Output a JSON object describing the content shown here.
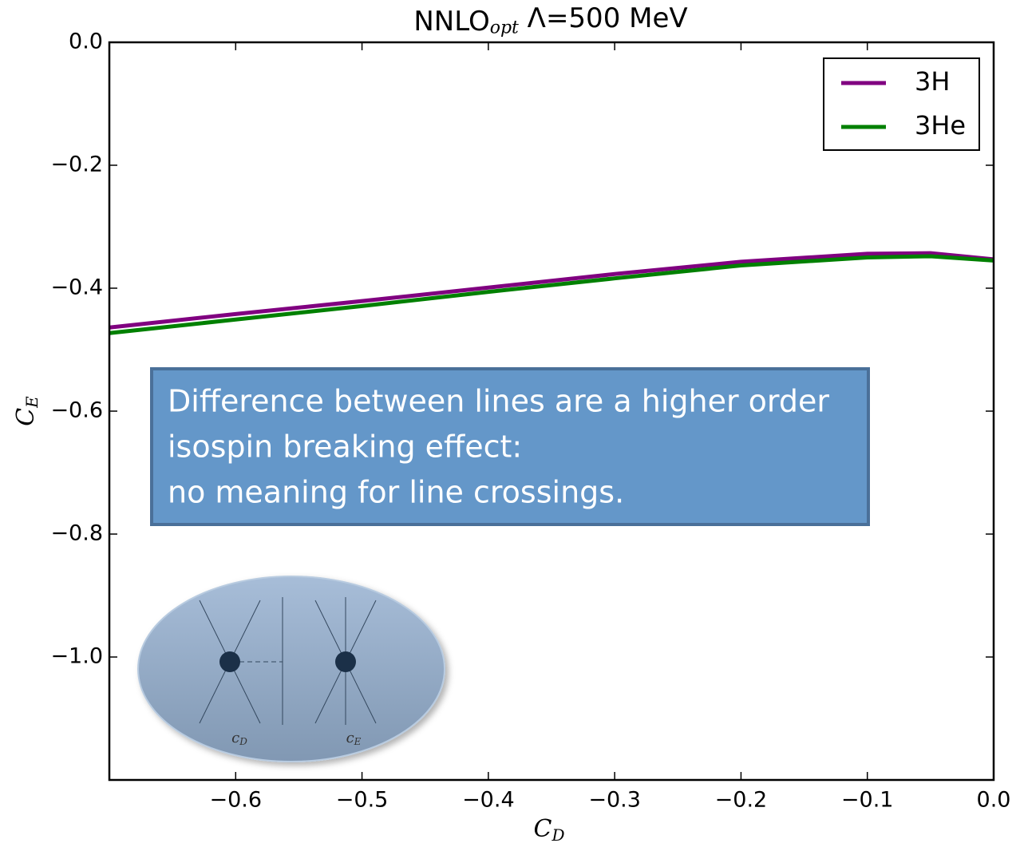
{
  "chart_data": {
    "type": "line",
    "title": {
      "text": "NNLO",
      "subscript": "opt",
      "suffix": " Λ=500 MeV"
    },
    "x_label": {
      "text": "C",
      "subscript": "D"
    },
    "y_label": {
      "text": "C",
      "subscript": "E"
    },
    "x": [
      -0.7,
      -0.6,
      -0.5,
      -0.4,
      -0.3,
      -0.2,
      -0.1,
      -0.05,
      0
    ],
    "series": [
      {
        "name": "3H",
        "color": "#800080",
        "values": [
          -0.464,
          -0.442,
          -0.421,
          -0.399,
          -0.377,
          -0.357,
          -0.344,
          -0.343,
          -0.353
        ]
      },
      {
        "name": "3He",
        "color": "#008000",
        "values": [
          -0.473,
          -0.451,
          -0.429,
          -0.406,
          -0.384,
          -0.363,
          -0.35,
          -0.348,
          -0.355
        ]
      }
    ],
    "xlim": [
      -0.7,
      0
    ],
    "ylim": [
      -1.2,
      0
    ],
    "xticks": [
      {
        "value": -0.6,
        "label": "−0.6"
      },
      {
        "value": -0.5,
        "label": "−0.5"
      },
      {
        "value": -0.4,
        "label": "−0.4"
      },
      {
        "value": -0.3,
        "label": "−0.3"
      },
      {
        "value": -0.2,
        "label": "−0.2"
      },
      {
        "value": -0.1,
        "label": "−0.1"
      },
      {
        "value": 0,
        "label": "0.0"
      }
    ],
    "yticks": [
      {
        "value": -1.0,
        "label": "−1.0"
      },
      {
        "value": -0.8,
        "label": "−0.8"
      },
      {
        "value": -0.6,
        "label": "−0.6"
      },
      {
        "value": -0.4,
        "label": "−0.4"
      },
      {
        "value": -0.2,
        "label": "−0.2"
      },
      {
        "value": 0,
        "label": "0.0"
      }
    ],
    "grid": false,
    "legend": "upper right",
    "annotation": [
      "Difference between lines are a higher order",
      "isospin breaking effect:",
      "no meaning for line crossings."
    ],
    "inset_labels": [
      {
        "text": "c",
        "subscript": "D"
      },
      {
        "text": "c",
        "subscript": "E"
      }
    ]
  }
}
